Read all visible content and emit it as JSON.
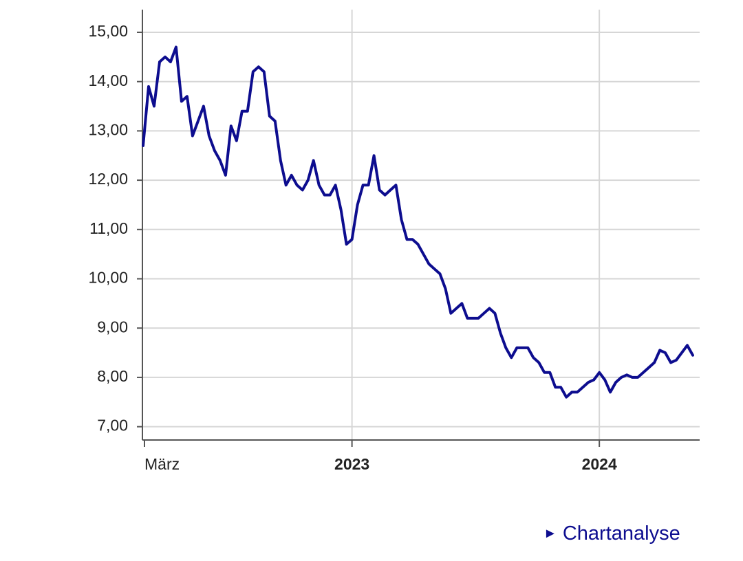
{
  "chart_data": {
    "type": "line",
    "categories": [
      "März",
      null,
      null,
      null,
      null,
      null,
      null,
      null,
      null,
      null,
      null,
      null,
      null,
      null,
      null,
      null,
      null,
      null,
      null,
      null,
      null,
      null,
      null,
      null,
      null,
      null,
      null,
      null,
      null,
      null,
      null,
      null,
      null,
      null,
      null,
      null,
      null,
      null,
      "2023",
      null,
      null,
      null,
      null,
      null,
      null,
      null,
      null,
      null,
      null,
      null,
      null,
      null,
      null,
      null,
      null,
      null,
      null,
      null,
      null,
      null,
      null,
      null,
      null,
      null,
      null,
      null,
      null,
      null,
      null,
      null,
      null,
      null,
      null,
      null,
      null,
      null,
      null,
      null,
      null,
      null,
      null,
      null,
      null,
      "2024",
      null,
      null,
      null,
      null,
      null,
      null,
      null,
      null,
      null,
      null,
      null,
      null,
      null,
      null,
      null,
      null,
      null
    ],
    "values": [
      12.7,
      13.9,
      13.5,
      14.4,
      14.5,
      14.4,
      14.7,
      13.6,
      13.7,
      12.9,
      13.2,
      13.5,
      12.9,
      12.6,
      12.4,
      12.1,
      13.1,
      12.8,
      13.4,
      13.4,
      14.2,
      14.3,
      14.2,
      13.3,
      13.2,
      12.4,
      11.9,
      12.1,
      11.9,
      11.8,
      12.0,
      12.4,
      11.9,
      11.7,
      11.7,
      11.9,
      11.4,
      10.7,
      10.8,
      11.5,
      11.9,
      11.9,
      12.5,
      11.8,
      11.7,
      11.8,
      11.9,
      11.2,
      10.8,
      10.8,
      10.7,
      10.5,
      10.3,
      10.2,
      10.1,
      9.8,
      9.3,
      9.4,
      9.5,
      9.2,
      9.2,
      9.2,
      9.3,
      9.4,
      9.3,
      8.9,
      8.6,
      8.4,
      8.6,
      8.6,
      8.6,
      8.4,
      8.3,
      8.1,
      8.1,
      7.8,
      7.8,
      7.6,
      7.7,
      7.7,
      7.8,
      7.9,
      7.95,
      8.1,
      7.95,
      7.7,
      7.9,
      8.0,
      8.05,
      8.0,
      8.0,
      8.1,
      8.2,
      8.3,
      8.55,
      8.5,
      8.3,
      8.35,
      8.5,
      8.65,
      8.45
    ],
    "color": "#0d0d8f",
    "ylim": [
      6.73,
      15.46
    ],
    "yticks": [
      {
        "value": 7,
        "label": "7,00"
      },
      {
        "value": 8,
        "label": "8,00"
      },
      {
        "value": 9,
        "label": "9,00"
      },
      {
        "value": 10,
        "label": "10,00"
      },
      {
        "value": 11,
        "label": "11,00"
      },
      {
        "value": 12,
        "label": "12,00"
      },
      {
        "value": 13,
        "label": "13,00"
      },
      {
        "value": 14,
        "label": "14,00"
      },
      {
        "value": 15,
        "label": "15,00"
      }
    ],
    "grid": true
  },
  "link": {
    "label": "Chartanalyse"
  }
}
